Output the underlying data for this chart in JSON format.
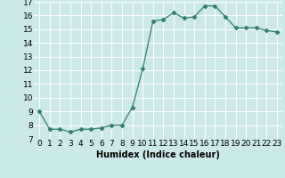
{
  "x": [
    0,
    1,
    2,
    3,
    4,
    5,
    6,
    7,
    8,
    9,
    10,
    11,
    12,
    13,
    14,
    15,
    16,
    17,
    18,
    19,
    20,
    21,
    22,
    23
  ],
  "y": [
    9.0,
    7.7,
    7.7,
    7.5,
    7.7,
    7.7,
    7.8,
    8.0,
    8.0,
    9.3,
    12.1,
    15.6,
    15.7,
    16.2,
    15.8,
    15.9,
    16.7,
    16.7,
    15.9,
    15.1,
    15.1,
    15.1,
    14.9,
    14.8
  ],
  "line_color": "#2e7d6e",
  "marker": "D",
  "marker_size": 2.5,
  "bg_color": "#cce9e9",
  "grid_color": "#ffffff",
  "xlabel": "Humidex (Indice chaleur)",
  "ylim": [
    7,
    17
  ],
  "xlim_min": -0.5,
  "xlim_max": 23.5,
  "yticks": [
    7,
    8,
    9,
    10,
    11,
    12,
    13,
    14,
    15,
    16,
    17
  ],
  "xticks": [
    0,
    1,
    2,
    3,
    4,
    5,
    6,
    7,
    8,
    9,
    10,
    11,
    12,
    13,
    14,
    15,
    16,
    17,
    18,
    19,
    20,
    21,
    22,
    23
  ],
  "xtick_labels": [
    "0",
    "1",
    "2",
    "3",
    "4",
    "5",
    "6",
    "7",
    "8",
    "9",
    "10",
    "11",
    "12",
    "13",
    "14",
    "15",
    "16",
    "17",
    "18",
    "19",
    "20",
    "21",
    "22",
    "23"
  ],
  "xlabel_fontsize": 7,
  "tick_fontsize": 6.5
}
